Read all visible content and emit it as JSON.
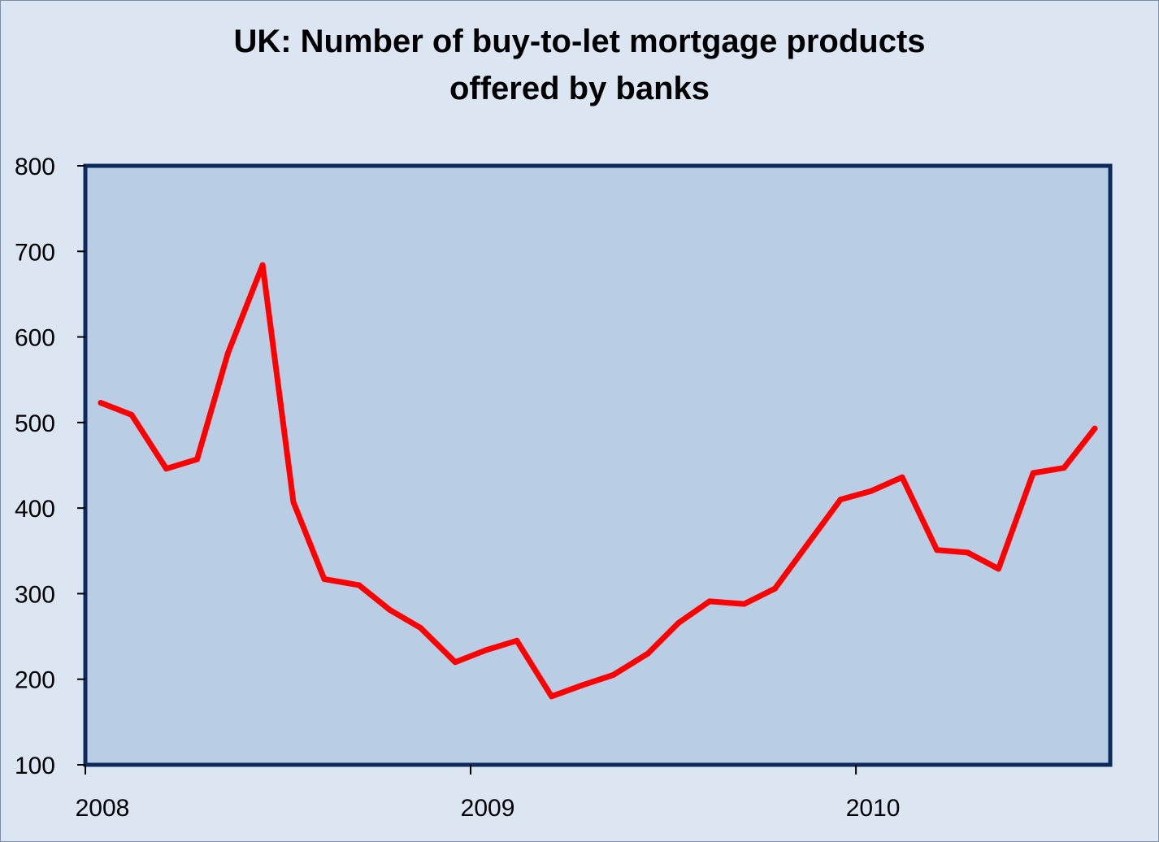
{
  "chart_data": {
    "type": "line",
    "title_lines": [
      "UK: Number of buy-to-let mortgage products",
      "offered by banks"
    ],
    "xlabel": "",
    "ylabel": "",
    "ylim": [
      100,
      800
    ],
    "y_ticks": [
      100,
      200,
      300,
      400,
      500,
      600,
      700,
      800
    ],
    "x_tick_labels": [
      "2008",
      "2009",
      "2010"
    ],
    "x_tick_positions": [
      2008,
      2009,
      2010
    ],
    "xlim": [
      2008,
      2010.66
    ],
    "grid": false,
    "legend": "none",
    "plot_background": "#b9cde5",
    "page_background": "#dce6f2",
    "plot_border_color": "#0d2a5c",
    "series": [
      {
        "color": "#ff0000",
        "x": [
          2008.04,
          2008.12,
          2008.21,
          2008.29,
          2008.37,
          2008.46,
          2008.54,
          2008.62,
          2008.71,
          2008.79,
          2008.87,
          2008.96,
          2009.04,
          2009.12,
          2009.21,
          2009.29,
          2009.37,
          2009.46,
          2009.54,
          2009.62,
          2009.71,
          2009.79,
          2009.87,
          2009.96,
          2010.04,
          2010.12,
          2010.21,
          2010.29,
          2010.37,
          2010.46,
          2010.54,
          2010.62
        ],
        "values": [
          523,
          509,
          446,
          457,
          581,
          684,
          407,
          317,
          310,
          281,
          260,
          220,
          234,
          245,
          180,
          193,
          205,
          230,
          266,
          291,
          288,
          306,
          355,
          410,
          420,
          436,
          351,
          348,
          329,
          441,
          447,
          493
        ]
      }
    ]
  }
}
